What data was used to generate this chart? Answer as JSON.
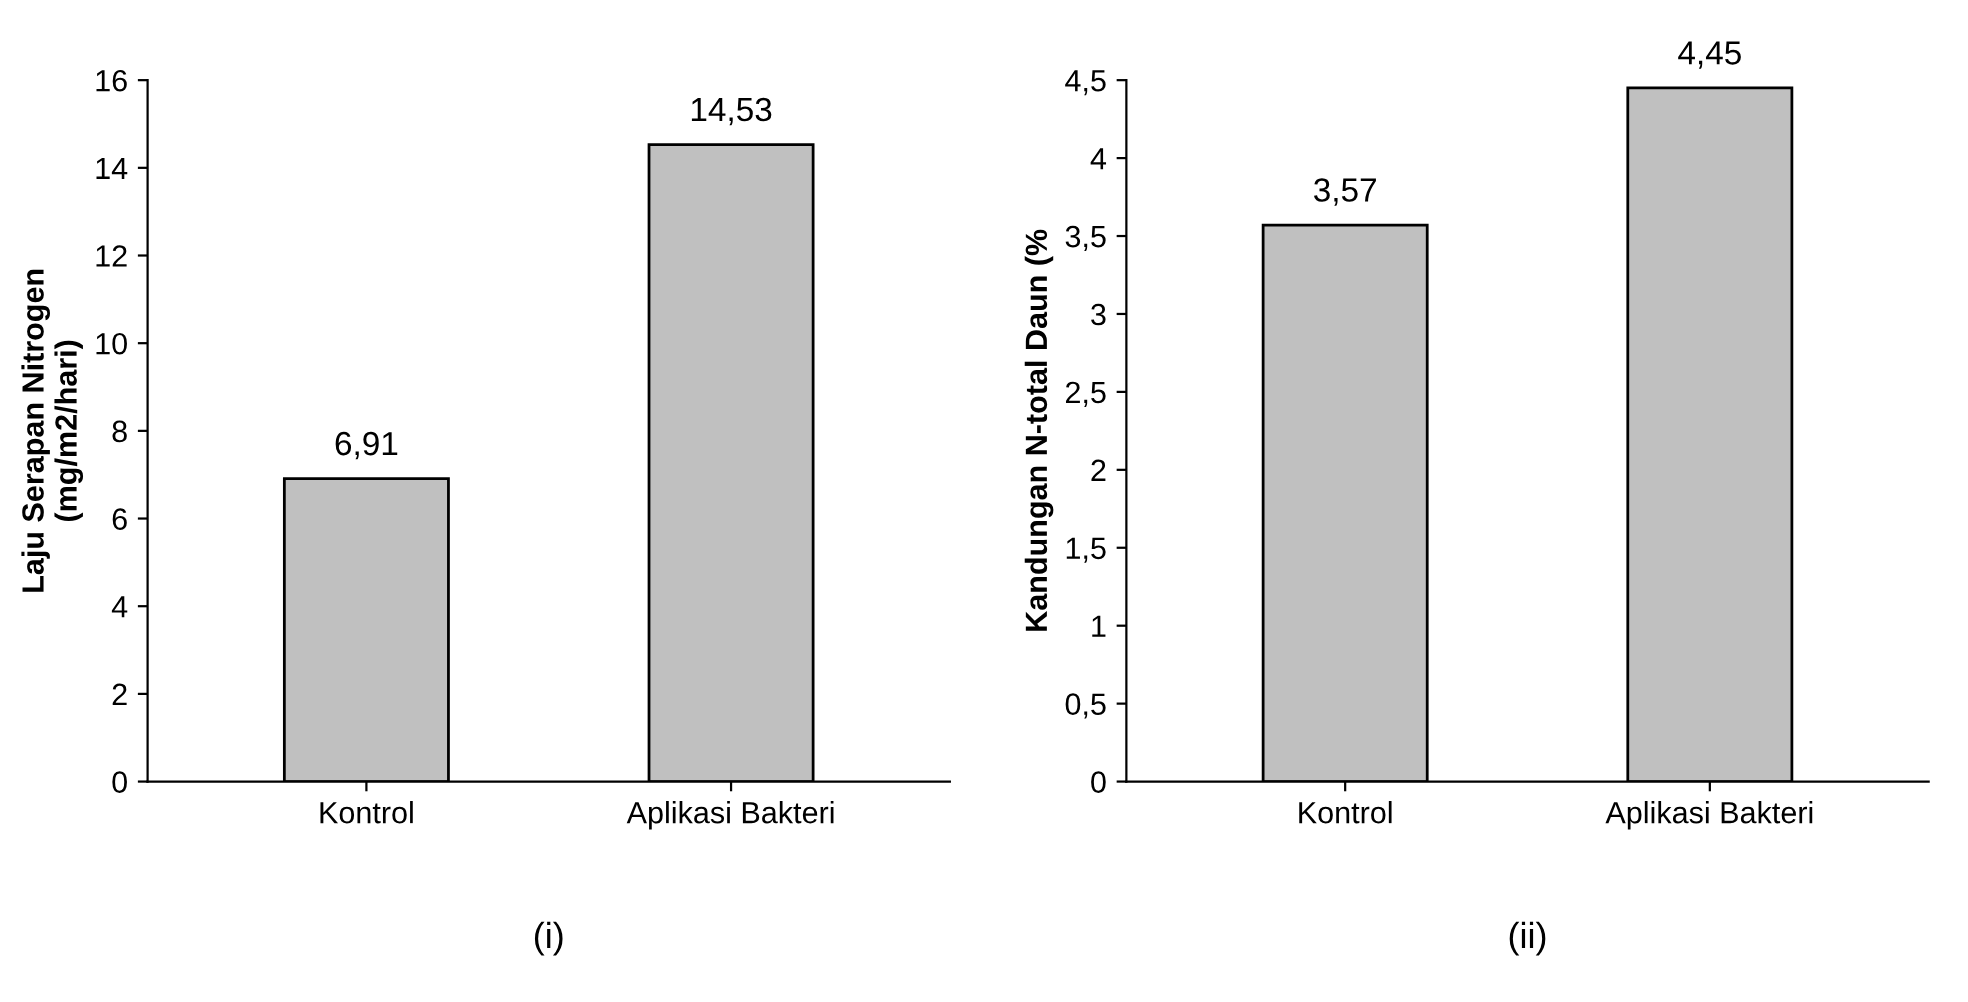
{
  "chart_data": [
    {
      "type": "bar",
      "ylabel": "Laju Serapan Nitrogen\n(mg/m2/hari)",
      "categories": [
        "Kontrol",
        "Aplikasi Bakteri"
      ],
      "values": [
        6.91,
        14.53
      ],
      "value_labels": [
        "6,91",
        "14,53"
      ],
      "color": "#c0c0c0",
      "ylim": [
        0,
        16
      ],
      "yticks": [
        0,
        2,
        4,
        6,
        8,
        10,
        12,
        14,
        16
      ],
      "grid": false,
      "legend": false,
      "annotations": [
        "(i)"
      ]
    },
    {
      "type": "bar",
      "ylabel": "Kandungan N-total Daun (%",
      "categories": [
        "Kontrol",
        "Aplikasi Bakteri"
      ],
      "values": [
        3.57,
        4.45
      ],
      "value_labels": [
        "3,57",
        "4,45"
      ],
      "color": "#c0c0c0",
      "ylim": [
        0,
        4.5
      ],
      "yticks": [
        0,
        {
          "value": 0.5,
          "label": "0,5"
        },
        1,
        {
          "value": 1.5,
          "label": "1,5"
        },
        2,
        {
          "value": 2.5,
          "label": "2,5"
        },
        3,
        {
          "value": 3.5,
          "label": "3,5"
        },
        4,
        {
          "value": 4.5,
          "label": "4,5"
        }
      ],
      "grid": false,
      "legend": false,
      "annotations": [
        "(ii)"
      ]
    }
  ]
}
